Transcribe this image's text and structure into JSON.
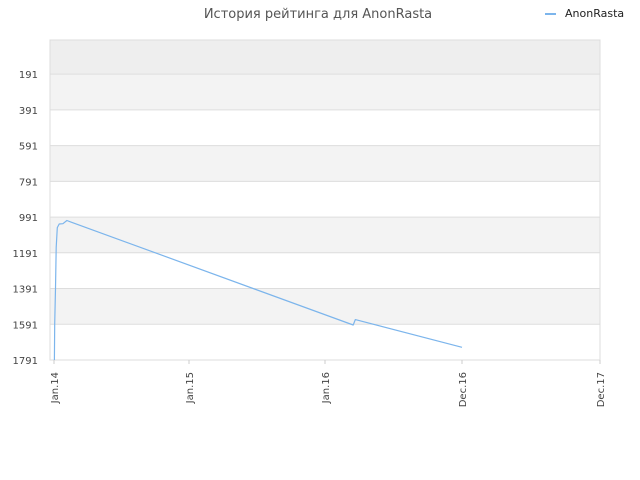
{
  "chart_data": {
    "type": "line",
    "title": "История рейтинга для AnonRasta",
    "xlabel": "",
    "ylabel": "",
    "y_axis_inverted": true,
    "ylim": [
      1791,
      0
    ],
    "y_ticks": [
      191,
      391,
      591,
      791,
      991,
      1191,
      1391,
      1591,
      1791
    ],
    "x_ticks": [
      "Jan.14",
      "Jan.15",
      "Jan.16",
      "Dec.16",
      "Dec.17"
    ],
    "legend": {
      "position": "top-right"
    },
    "grid": true,
    "series": [
      {
        "name": "AnonRasta",
        "color": "#7cb5ec",
        "points": [
          {
            "x": "2014-01-02",
            "y": 1791
          },
          {
            "x": "2014-01-03",
            "y": 1591
          },
          {
            "x": "2014-01-05",
            "y": 1391
          },
          {
            "x": "2014-01-07",
            "y": 1160
          },
          {
            "x": "2014-01-10",
            "y": 1050
          },
          {
            "x": "2014-01-15",
            "y": 1030
          },
          {
            "x": "2014-01-25",
            "y": 1028
          },
          {
            "x": "2014-02-05",
            "y": 1010
          },
          {
            "x": "2014-02-15",
            "y": 1018
          },
          {
            "x": "2016-03-10",
            "y": 1595
          },
          {
            "x": "2016-03-15",
            "y": 1565
          },
          {
            "x": "2016-12-01",
            "y": 1720
          }
        ]
      }
    ]
  }
}
